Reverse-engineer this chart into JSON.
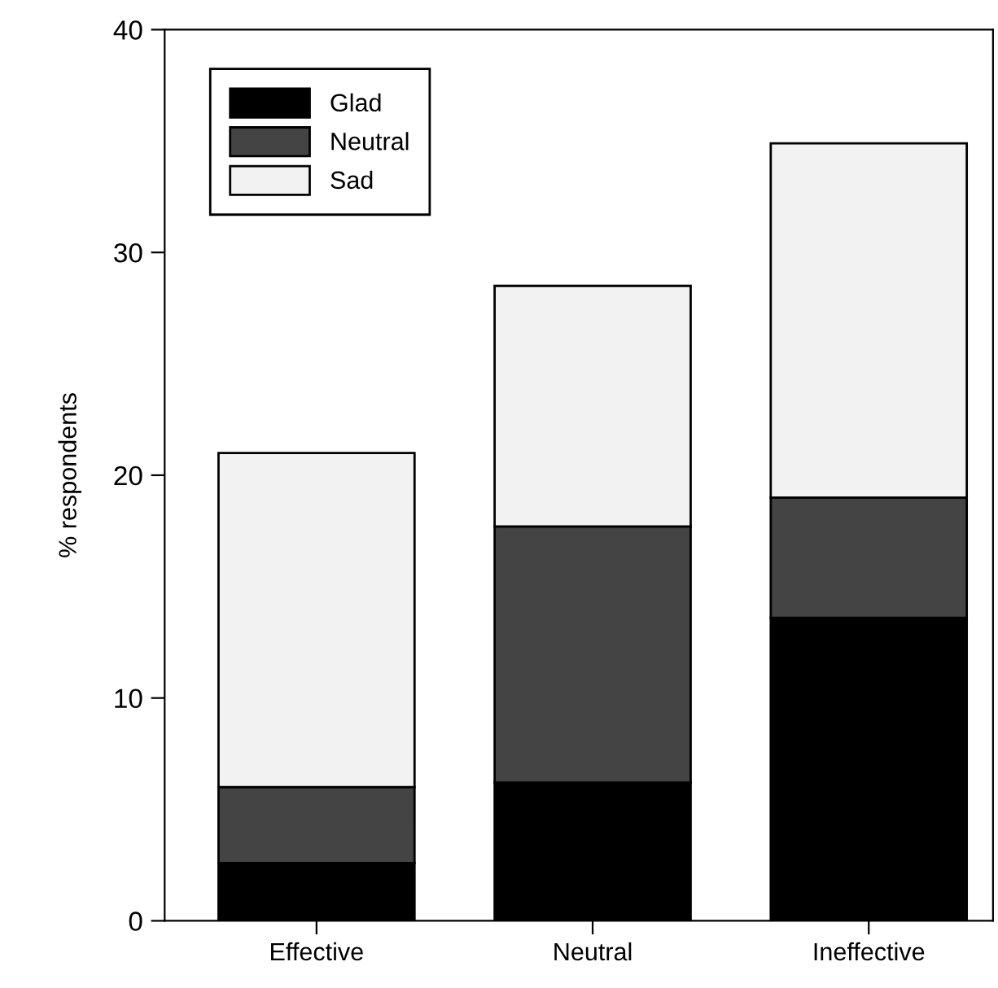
{
  "chart_data": {
    "type": "bar",
    "ylabel": "% respondents",
    "categories": [
      "Effective",
      "Neutral",
      "Ineffective"
    ],
    "stacked": true,
    "series": [
      {
        "name": "Glad",
        "color": "#000000",
        "values": [
          2.6,
          6.2,
          13.6
        ]
      },
      {
        "name": "Neutral",
        "color": "#444444",
        "values": [
          3.4,
          11.5,
          5.4
        ]
      },
      {
        "name": "Sad",
        "color": "#f2f2f2",
        "values": [
          15.0,
          10.8,
          15.9
        ]
      }
    ],
    "ylim": [
      0,
      40
    ],
    "yticks": [
      0,
      10,
      20,
      30,
      40
    ],
    "grid": false,
    "legend": "top left"
  }
}
